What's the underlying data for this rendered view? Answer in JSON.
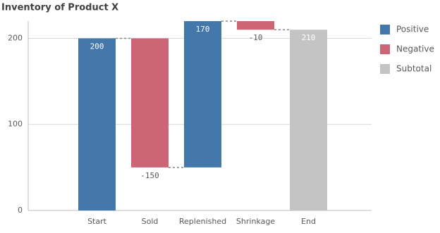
{
  "chart_data": {
    "type": "waterfall",
    "title": "Inventory of Product X",
    "categories": [
      "Start",
      "Sold",
      "Replenished",
      "Shrinkage",
      "End"
    ],
    "series": [
      {
        "name": "Positive",
        "color": "#4477aa",
        "values": [
          200,
          null,
          170,
          null,
          null
        ]
      },
      {
        "name": "Negative",
        "color": "#cc6677",
        "values": [
          null,
          -150,
          null,
          -10,
          null
        ]
      },
      {
        "name": "Subtotal",
        "color": "#c4c4c4",
        "values": [
          null,
          null,
          null,
          null,
          210
        ]
      }
    ],
    "ylim": [
      0,
      220
    ],
    "yticks": [
      0,
      100,
      200
    ],
    "grid": true,
    "legend": "right"
  }
}
